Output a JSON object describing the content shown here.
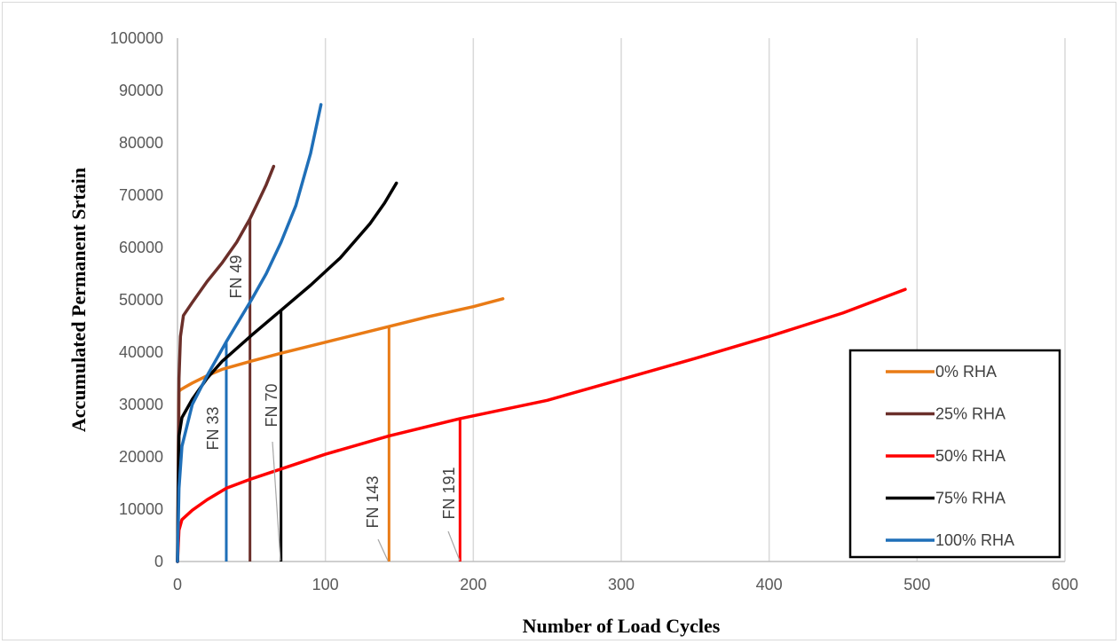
{
  "chart_data": {
    "type": "line",
    "title": "",
    "xlabel": "Number of Load Cycles",
    "ylabel": "Accumulated  Permanent Srtain",
    "xlim": [
      0,
      600
    ],
    "ylim": [
      0,
      100000
    ],
    "xticks": [
      "0",
      "100",
      "200",
      "300",
      "400",
      "500",
      "600"
    ],
    "yticks": [
      "0",
      "10000",
      "20000",
      "30000",
      "40000",
      "50000",
      "60000",
      "70000",
      "80000",
      "90000",
      "100000"
    ],
    "grid": "vertical",
    "legend_position": "bottom-right",
    "series": [
      {
        "name": "0% RHA",
        "color": "#e97b16",
        "points": [
          [
            0,
            0
          ],
          [
            1,
            32500
          ],
          [
            2,
            32800
          ],
          [
            5,
            33300
          ],
          [
            10,
            34100
          ],
          [
            20,
            35500
          ],
          [
            30,
            36700
          ],
          [
            50,
            38300
          ],
          [
            70,
            39800
          ],
          [
            100,
            41900
          ],
          [
            143,
            44900
          ],
          [
            170,
            46800
          ],
          [
            200,
            48700
          ],
          [
            220,
            50200
          ]
        ],
        "flow_number": 143,
        "flow_strain": 44900,
        "flow_label": "FN 143"
      },
      {
        "name": "25% RHA",
        "color": "#6b2f2a",
        "points": [
          [
            0,
            0
          ],
          [
            1,
            35000
          ],
          [
            2,
            43000
          ],
          [
            4,
            47000
          ],
          [
            10,
            49500
          ],
          [
            20,
            53500
          ],
          [
            30,
            57000
          ],
          [
            40,
            61000
          ],
          [
            49,
            65500
          ],
          [
            55,
            69000
          ],
          [
            60,
            72000
          ],
          [
            65,
            75500
          ]
        ],
        "flow_number": 49,
        "flow_strain": 65500,
        "flow_label": "FN 49"
      },
      {
        "name": "50% RHA",
        "color": "#ff0000",
        "points": [
          [
            0,
            0
          ],
          [
            1,
            6000
          ],
          [
            3,
            8000
          ],
          [
            10,
            9800
          ],
          [
            20,
            11800
          ],
          [
            33,
            14000
          ],
          [
            50,
            15800
          ],
          [
            100,
            20500
          ],
          [
            143,
            24000
          ],
          [
            191,
            27300
          ],
          [
            250,
            30800
          ],
          [
            300,
            34800
          ],
          [
            350,
            38800
          ],
          [
            400,
            43000
          ],
          [
            450,
            47500
          ],
          [
            492,
            52000
          ]
        ],
        "flow_number": 191,
        "flow_strain": 27300,
        "flow_label": "FN 191"
      },
      {
        "name": "75% RHA",
        "color": "#000000",
        "points": [
          [
            0,
            0
          ],
          [
            1,
            24000
          ],
          [
            3,
            27500
          ],
          [
            10,
            31000
          ],
          [
            20,
            35000
          ],
          [
            30,
            38200
          ],
          [
            50,
            43200
          ],
          [
            70,
            48000
          ],
          [
            90,
            52800
          ],
          [
            110,
            58000
          ],
          [
            130,
            64500
          ],
          [
            140,
            68500
          ],
          [
            148,
            72300
          ]
        ],
        "flow_number": 70,
        "flow_strain": 48000,
        "flow_label": "FN 70"
      },
      {
        "name": "100% RHA",
        "color": "#1f6fb8",
        "points": [
          [
            0,
            0
          ],
          [
            1,
            14000
          ],
          [
            3,
            22000
          ],
          [
            10,
            30000
          ],
          [
            20,
            35500
          ],
          [
            33,
            42000
          ],
          [
            50,
            50000
          ],
          [
            60,
            55000
          ],
          [
            70,
            61000
          ],
          [
            80,
            68000
          ],
          [
            90,
            78000
          ],
          [
            97,
            87300
          ]
        ],
        "flow_number": 33,
        "flow_strain": 42000,
        "flow_label": "FN 33"
      }
    ]
  }
}
